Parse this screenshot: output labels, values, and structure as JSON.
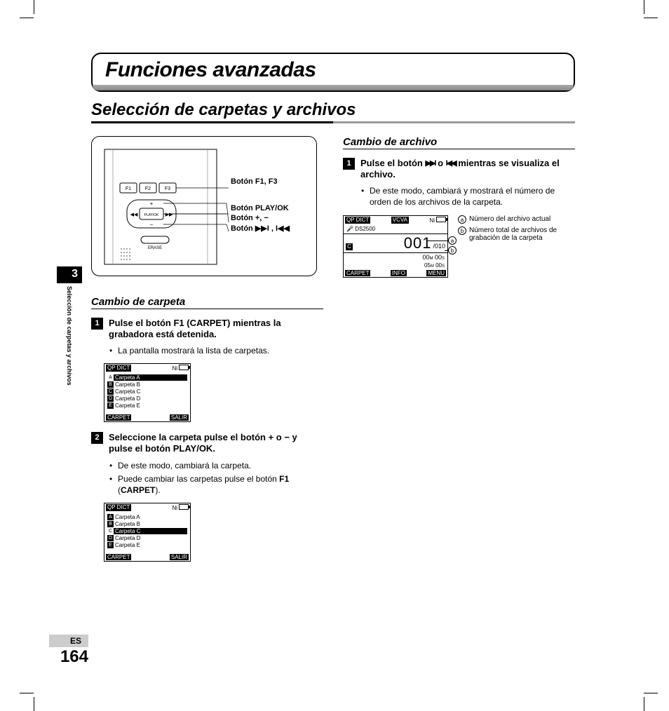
{
  "crop_color": "#000000",
  "sidebar": {
    "chapter_number": "3",
    "vertical_label": "Selección de carpetas y archivos"
  },
  "footer": {
    "language": "ES",
    "page_number": "164"
  },
  "boxed_title": "Funciones avanzadas",
  "section_title": "Selección de carpetas y archivos",
  "device_labels": {
    "f1f3": "Botón F1, F3",
    "playok": "Botón PLAY/OK",
    "plusminus": "Botón +, −",
    "ffrew": "Botón ▶▶I , I◀◀"
  },
  "left": {
    "subheading": "Cambio de carpeta",
    "step1": {
      "num": "1",
      "text_pre": "Pulse el botón ",
      "text_bold": "F1 (CARPET)",
      "text_post": " mientras la grabadora está detenida.",
      "bullet1": "La pantalla mostrará la lista de carpetas."
    },
    "step2": {
      "num": "2",
      "text_pre": "Seleccione la carpeta pulse el botón ",
      "text_bold1": "+",
      "text_mid": " o ",
      "text_bold2": "−",
      "text_mid2": " y pulse el botón ",
      "text_bold3": "PLAY/OK",
      "text_post": ".",
      "bullet1": "De este modo, cambiará la carpeta.",
      "bullet2_pre": "Puede cambiar las carpetas pulse el botón ",
      "bullet2_bold": "F1",
      "bullet2_mid": " (",
      "bullet2_bold2": "CARPET",
      "bullet2_post": ")."
    },
    "lcd1": {
      "header": "QP DICT",
      "batt_label": "Ni",
      "items": [
        {
          "letter": "A",
          "label": "Carpeta A",
          "highlight": true
        },
        {
          "letter": "B",
          "label": "Carpeta B",
          "highlight": false
        },
        {
          "letter": "C",
          "label": "Carpeta C",
          "highlight": false
        },
        {
          "letter": "D",
          "label": "Carpeta D",
          "highlight": false
        },
        {
          "letter": "E",
          "label": "Carpeta E",
          "highlight": false
        }
      ],
      "footer_left": "CARPET",
      "footer_right": "SALIR"
    },
    "lcd2": {
      "header": "QP DICT",
      "batt_label": "Ni",
      "items": [
        {
          "letter": "A",
          "label": "Carpeta A",
          "highlight": false
        },
        {
          "letter": "B",
          "label": "Carpeta B",
          "highlight": false
        },
        {
          "letter": "C",
          "label": "Carpeta C",
          "highlight": true
        },
        {
          "letter": "D",
          "label": "Carpeta D",
          "highlight": false
        },
        {
          "letter": "E",
          "label": "Carpeta E",
          "highlight": false
        }
      ],
      "footer_left": "CARPET",
      "footer_right": "SALIR"
    }
  },
  "right": {
    "subheading": "Cambio de archivo",
    "step1": {
      "num": "1",
      "text_pre": "Pulse el botón ",
      "ff_icon": "▶▶I",
      "text_mid": " o ",
      "rew_icon": "I◀◀",
      "text_post": " mientras se visualiza el archivo.",
      "bullet1": "De este modo, cambiará y mostrará el número de orden de los archivos de la carpeta."
    },
    "lcd": {
      "qpdict": "QP DICT",
      "vcva": "VCVA",
      "batt_label": "Ni",
      "model": "DS2500",
      "folder_letter": "C",
      "current": "001",
      "total": "/010",
      "time1_m": "00",
      "time1_s": "00",
      "time2_m": "05",
      "time2_s": "00",
      "footer_left": "CARPET",
      "footer_mid": "INFO",
      "footer_right": "MENU",
      "annot_a_letter": "a",
      "annot_a_text": "Número del archivo actual",
      "annot_b_letter": "b",
      "annot_b_text": "Número total de archivos de grabación de la carpeta"
    }
  }
}
